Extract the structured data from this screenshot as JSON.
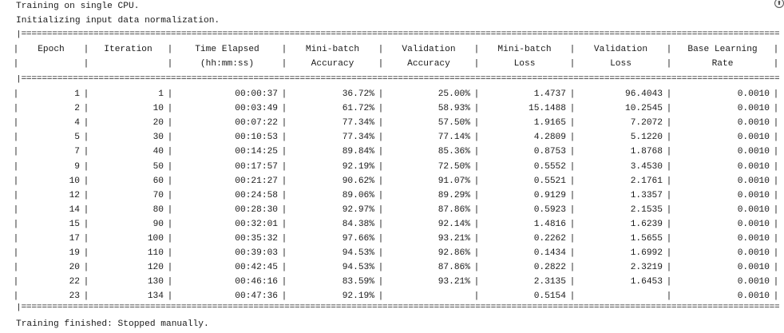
{
  "console": {
    "line1": "Training on single CPU.",
    "line2": "Initializing input data normalization.",
    "footer": "Training finished: Stopped manually."
  },
  "table": {
    "separator_char": "=",
    "columns": [
      {
        "line1": "Epoch",
        "line2": ""
      },
      {
        "line1": "Iteration",
        "line2": ""
      },
      {
        "line1": "Time Elapsed",
        "line2": "(hh:mm:ss)"
      },
      {
        "line1": "Mini-batch",
        "line2": "Accuracy"
      },
      {
        "line1": "Validation",
        "line2": "Accuracy"
      },
      {
        "line1": "Mini-batch",
        "line2": "Loss"
      },
      {
        "line1": "Validation",
        "line2": "Loss"
      },
      {
        "line1": "Base Learning",
        "line2": "Rate"
      }
    ],
    "rows": [
      [
        "1",
        "1",
        "00:00:37",
        "36.72%",
        "25.00%",
        "1.4737",
        "96.4043",
        "0.0010"
      ],
      [
        "2",
        "10",
        "00:03:49",
        "61.72%",
        "58.93%",
        "15.1488",
        "10.2545",
        "0.0010"
      ],
      [
        "4",
        "20",
        "00:07:22",
        "77.34%",
        "57.50%",
        "1.9165",
        "7.2072",
        "0.0010"
      ],
      [
        "5",
        "30",
        "00:10:53",
        "77.34%",
        "77.14%",
        "4.2809",
        "5.1220",
        "0.0010"
      ],
      [
        "7",
        "40",
        "00:14:25",
        "89.84%",
        "85.36%",
        "0.8753",
        "1.8768",
        "0.0010"
      ],
      [
        "9",
        "50",
        "00:17:57",
        "92.19%",
        "72.50%",
        "0.5552",
        "3.4530",
        "0.0010"
      ],
      [
        "10",
        "60",
        "00:21:27",
        "90.62%",
        "91.07%",
        "0.5521",
        "2.1761",
        "0.0010"
      ],
      [
        "12",
        "70",
        "00:24:58",
        "89.06%",
        "89.29%",
        "0.9129",
        "1.3357",
        "0.0010"
      ],
      [
        "14",
        "80",
        "00:28:30",
        "92.97%",
        "87.86%",
        "0.5923",
        "2.1535",
        "0.0010"
      ],
      [
        "15",
        "90",
        "00:32:01",
        "84.38%",
        "92.14%",
        "1.4816",
        "1.6239",
        "0.0010"
      ],
      [
        "17",
        "100",
        "00:35:32",
        "97.66%",
        "93.21%",
        "0.2262",
        "1.5655",
        "0.0010"
      ],
      [
        "19",
        "110",
        "00:39:03",
        "94.53%",
        "92.86%",
        "0.1434",
        "1.6992",
        "0.0010"
      ],
      [
        "20",
        "120",
        "00:42:45",
        "94.53%",
        "87.86%",
        "0.2822",
        "2.3219",
        "0.0010"
      ],
      [
        "22",
        "130",
        "00:46:16",
        "83.59%",
        "93.21%",
        "2.3135",
        "1.6453",
        "0.0010"
      ],
      [
        "23",
        "134",
        "00:47:36",
        "92.19%",
        "",
        "0.5154",
        "",
        "0.0010"
      ]
    ]
  },
  "icons": {
    "collapse": "collapse-icon"
  }
}
